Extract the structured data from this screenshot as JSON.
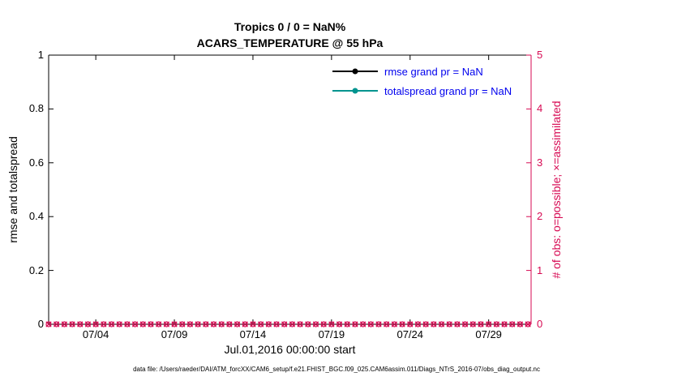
{
  "chart_data": {
    "type": "line",
    "title_line1": "Tropics 0 / 0 = NaN%",
    "title_line2": "ACARS_TEMPERATURE @ 55 hPa",
    "xlabel": "Jul.01,2016 00:00:00 start",
    "ylabel_left": "rmse and totalspread",
    "ylabel_right": "# of obs: o=possible; ×=assimilated",
    "xlim_days": [
      1,
      31.7
    ],
    "ylim_left": [
      0,
      1
    ],
    "ylim_right": [
      0,
      5
    ],
    "grid": false,
    "legend_position": "upper-center-right-inside",
    "xticks": [
      {
        "label": "07/04",
        "day": 4
      },
      {
        "label": "07/09",
        "day": 9
      },
      {
        "label": "07/14",
        "day": 14
      },
      {
        "label": "07/19",
        "day": 19
      },
      {
        "label": "07/24",
        "day": 24
      },
      {
        "label": "07/29",
        "day": 29
      }
    ],
    "yticks_left": [
      {
        "label": "0",
        "v": 0
      },
      {
        "label": "0.2",
        "v": 0.2
      },
      {
        "label": "0.4",
        "v": 0.4
      },
      {
        "label": "0.6",
        "v": 0.6
      },
      {
        "label": "0.8",
        "v": 0.8
      },
      {
        "label": "1",
        "v": 1
      }
    ],
    "yticks_right": [
      {
        "label": "0",
        "v": 0
      },
      {
        "label": "1",
        "v": 1
      },
      {
        "label": "2",
        "v": 2
      },
      {
        "label": "3",
        "v": 3
      },
      {
        "label": "4",
        "v": 4
      },
      {
        "label": "5",
        "v": 5
      }
    ],
    "series": [
      {
        "name": "rmse",
        "legend_label": "rmse grand pr = NaN",
        "color": "#000000",
        "grand_pr": "NaN",
        "values": []
      },
      {
        "name": "totalspread",
        "legend_label": "totalspread grand pr = NaN",
        "color": "#00948F",
        "grand_pr": "NaN",
        "values": []
      }
    ],
    "obs": {
      "y": 0,
      "x_start": 1,
      "x_end": 31.5,
      "x_step": 0.5,
      "possible_marker": "o",
      "assimilated_marker": "×"
    },
    "colors": {
      "obs_axis": "#D70A53",
      "legend_text": "#0000EE",
      "axes_box": "#000000"
    }
  },
  "footer": {
    "datafile": "data file: /Users/raeder/DAI/ATM_forcXX/CAM6_setup/f.e21.FHIST_BGC.f09_025.CAM6assim.011/Diags_NTrS_2016-07/obs_diag_output.nc"
  }
}
